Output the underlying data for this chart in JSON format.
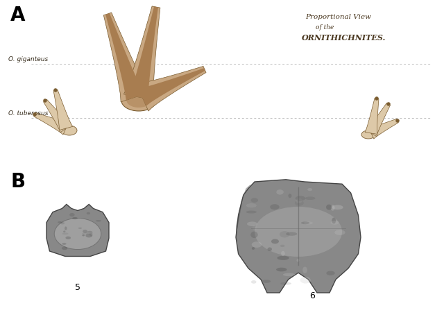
{
  "panel_A_label": "A",
  "panel_B_label": "B",
  "panel_A_title_line1": "Proportional View",
  "panel_A_title_line2": "of the",
  "panel_A_title_line3": "ORNITHICHNITES.",
  "label_giganteus": "O. giganteus",
  "label_tuberosus": "O. tuberosus",
  "label_5": "5",
  "label_6": "6",
  "bg_color": "#ffffff",
  "tan_fill": "#c9a882",
  "tan_dark": "#7a5c30",
  "tan_mid": "#a87d50",
  "tan_light": "#ddc9a8",
  "dotted_color": "#bbbbbb",
  "label_color": "#3a3020",
  "title_color": "#4a3820",
  "gray1": "#444444",
  "gray2": "#666666",
  "gray3": "#888888",
  "gray4": "#aaaaaa",
  "gray5": "#cccccc"
}
